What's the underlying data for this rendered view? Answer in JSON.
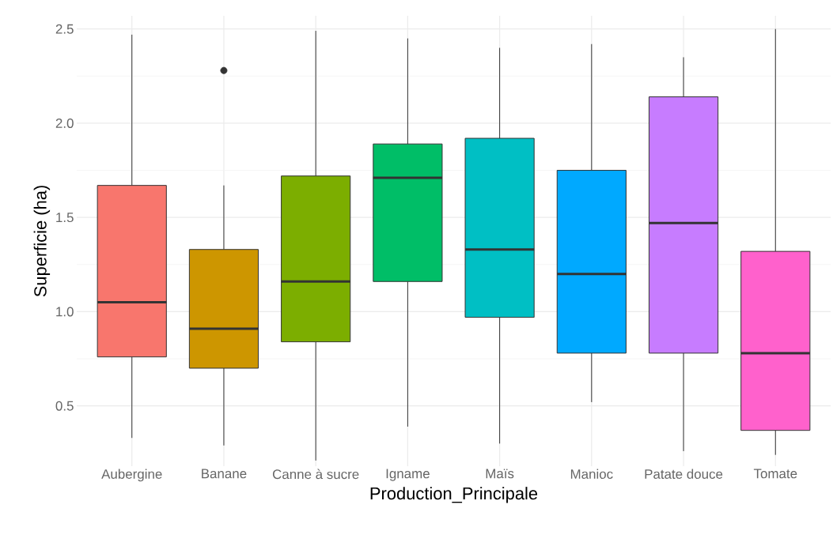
{
  "chart_data": {
    "type": "box",
    "xlabel": "Production_Principale",
    "ylabel": "Superficie (ha)",
    "categories": [
      "Aubergine",
      "Banane",
      "Canne à sucre",
      "Igname",
      "Maïs",
      "Manioc",
      "Patate douce",
      "Tomate"
    ],
    "colors": [
      "#f8766d",
      "#cd9600",
      "#7cae00",
      "#00be67",
      "#00bfc4",
      "#00a9ff",
      "#c77cff",
      "#ff61cc"
    ],
    "boxes": [
      {
        "low": 0.33,
        "q1": 0.76,
        "median": 1.05,
        "q3": 1.67,
        "high": 2.47
      },
      {
        "low": 0.29,
        "q1": 0.7,
        "median": 0.91,
        "q3": 1.33,
        "high": 1.67,
        "outliers": [
          2.28
        ]
      },
      {
        "low": 0.21,
        "q1": 0.84,
        "median": 1.16,
        "q3": 1.72,
        "high": 2.49
      },
      {
        "low": 0.39,
        "q1": 1.16,
        "median": 1.71,
        "q3": 1.89,
        "high": 2.45
      },
      {
        "low": 0.3,
        "q1": 0.97,
        "median": 1.33,
        "q3": 1.92,
        "high": 2.4
      },
      {
        "low": 0.52,
        "q1": 0.78,
        "median": 1.2,
        "q3": 1.75,
        "high": 2.42
      },
      {
        "low": 0.26,
        "q1": 0.78,
        "median": 1.47,
        "q3": 2.14,
        "high": 2.35
      },
      {
        "low": 0.24,
        "q1": 0.37,
        "median": 0.78,
        "q3": 1.32,
        "high": 2.5
      }
    ],
    "ylim": [
      0.18,
      2.57
    ],
    "yticks": [
      0.5,
      {
        "value": 1,
        "label": "1.0"
      },
      1.5,
      {
        "value": 2,
        "label": "2.0"
      },
      2.5
    ],
    "grid": true
  }
}
